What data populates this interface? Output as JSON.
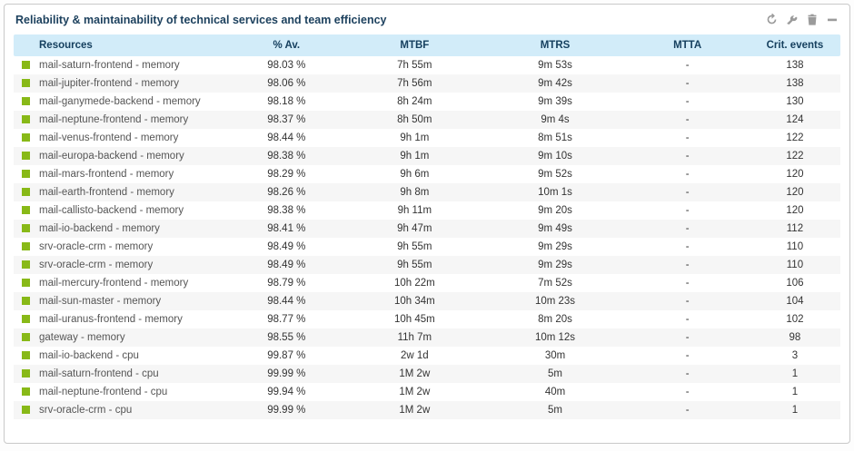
{
  "panel": {
    "title": "Reliability & maintainability of technical services and team efficiency"
  },
  "colors": {
    "status_ok": "#88b917",
    "header_bg": "#d2ecf9",
    "title_text": "#1d415e"
  },
  "toolbar": {
    "icons": [
      "refresh-icon",
      "wrench-icon",
      "trash-icon",
      "minimize-icon"
    ]
  },
  "table": {
    "columns": [
      "Resources",
      "% Av.",
      "MTBF",
      "MTRS",
      "MTTA",
      "Crit. events"
    ],
    "rows": [
      {
        "resource": "mail-saturn-frontend - memory",
        "availability": "98.03 %",
        "mtbf": "7h 55m",
        "mtrs": "9m 53s",
        "mtta": "-",
        "crit_events": "138"
      },
      {
        "resource": "mail-jupiter-frontend - memory",
        "availability": "98.06 %",
        "mtbf": "7h 56m",
        "mtrs": "9m 42s",
        "mtta": "-",
        "crit_events": "138"
      },
      {
        "resource": "mail-ganymede-backend - memory",
        "availability": "98.18 %",
        "mtbf": "8h 24m",
        "mtrs": "9m 39s",
        "mtta": "-",
        "crit_events": "130"
      },
      {
        "resource": "mail-neptune-frontend - memory",
        "availability": "98.37 %",
        "mtbf": "8h 50m",
        "mtrs": "9m 4s",
        "mtta": "-",
        "crit_events": "124"
      },
      {
        "resource": "mail-venus-frontend - memory",
        "availability": "98.44 %",
        "mtbf": "9h 1m",
        "mtrs": "8m 51s",
        "mtta": "-",
        "crit_events": "122"
      },
      {
        "resource": "mail-europa-backend - memory",
        "availability": "98.38 %",
        "mtbf": "9h 1m",
        "mtrs": "9m 10s",
        "mtta": "-",
        "crit_events": "122"
      },
      {
        "resource": "mail-mars-frontend - memory",
        "availability": "98.29 %",
        "mtbf": "9h 6m",
        "mtrs": "9m 52s",
        "mtta": "-",
        "crit_events": "120"
      },
      {
        "resource": "mail-earth-frontend - memory",
        "availability": "98.26 %",
        "mtbf": "9h 8m",
        "mtrs": "10m 1s",
        "mtta": "-",
        "crit_events": "120"
      },
      {
        "resource": "mail-callisto-backend - memory",
        "availability": "98.38 %",
        "mtbf": "9h 11m",
        "mtrs": "9m 20s",
        "mtta": "-",
        "crit_events": "120"
      },
      {
        "resource": "mail-io-backend - memory",
        "availability": "98.41 %",
        "mtbf": "9h 47m",
        "mtrs": "9m 49s",
        "mtta": "-",
        "crit_events": "112"
      },
      {
        "resource": "srv-oracle-crm - memory",
        "availability": "98.49 %",
        "mtbf": "9h 55m",
        "mtrs": "9m 29s",
        "mtta": "-",
        "crit_events": "110"
      },
      {
        "resource": "srv-oracle-crm - memory",
        "availability": "98.49 %",
        "mtbf": "9h 55m",
        "mtrs": "9m 29s",
        "mtta": "-",
        "crit_events": "110"
      },
      {
        "resource": "mail-mercury-frontend - memory",
        "availability": "98.79 %",
        "mtbf": "10h 22m",
        "mtrs": "7m 52s",
        "mtta": "-",
        "crit_events": "106"
      },
      {
        "resource": "mail-sun-master - memory",
        "availability": "98.44 %",
        "mtbf": "10h 34m",
        "mtrs": "10m 23s",
        "mtta": "-",
        "crit_events": "104"
      },
      {
        "resource": "mail-uranus-frontend - memory",
        "availability": "98.77 %",
        "mtbf": "10h 45m",
        "mtrs": "8m 20s",
        "mtta": "-",
        "crit_events": "102"
      },
      {
        "resource": "gateway - memory",
        "availability": "98.55 %",
        "mtbf": "11h 7m",
        "mtrs": "10m 12s",
        "mtta": "-",
        "crit_events": "98"
      },
      {
        "resource": "mail-io-backend - cpu",
        "availability": "99.87 %",
        "mtbf": "2w 1d",
        "mtrs": "30m",
        "mtta": "-",
        "crit_events": "3"
      },
      {
        "resource": "mail-saturn-frontend - cpu",
        "availability": "99.99 %",
        "mtbf": "1M 2w",
        "mtrs": "5m",
        "mtta": "-",
        "crit_events": "1"
      },
      {
        "resource": "mail-neptune-frontend - cpu",
        "availability": "99.94 %",
        "mtbf": "1M 2w",
        "mtrs": "40m",
        "mtta": "-",
        "crit_events": "1"
      },
      {
        "resource": "srv-oracle-crm - cpu",
        "availability": "99.99 %",
        "mtbf": "1M 2w",
        "mtrs": "5m",
        "mtta": "-",
        "crit_events": "1"
      }
    ]
  }
}
